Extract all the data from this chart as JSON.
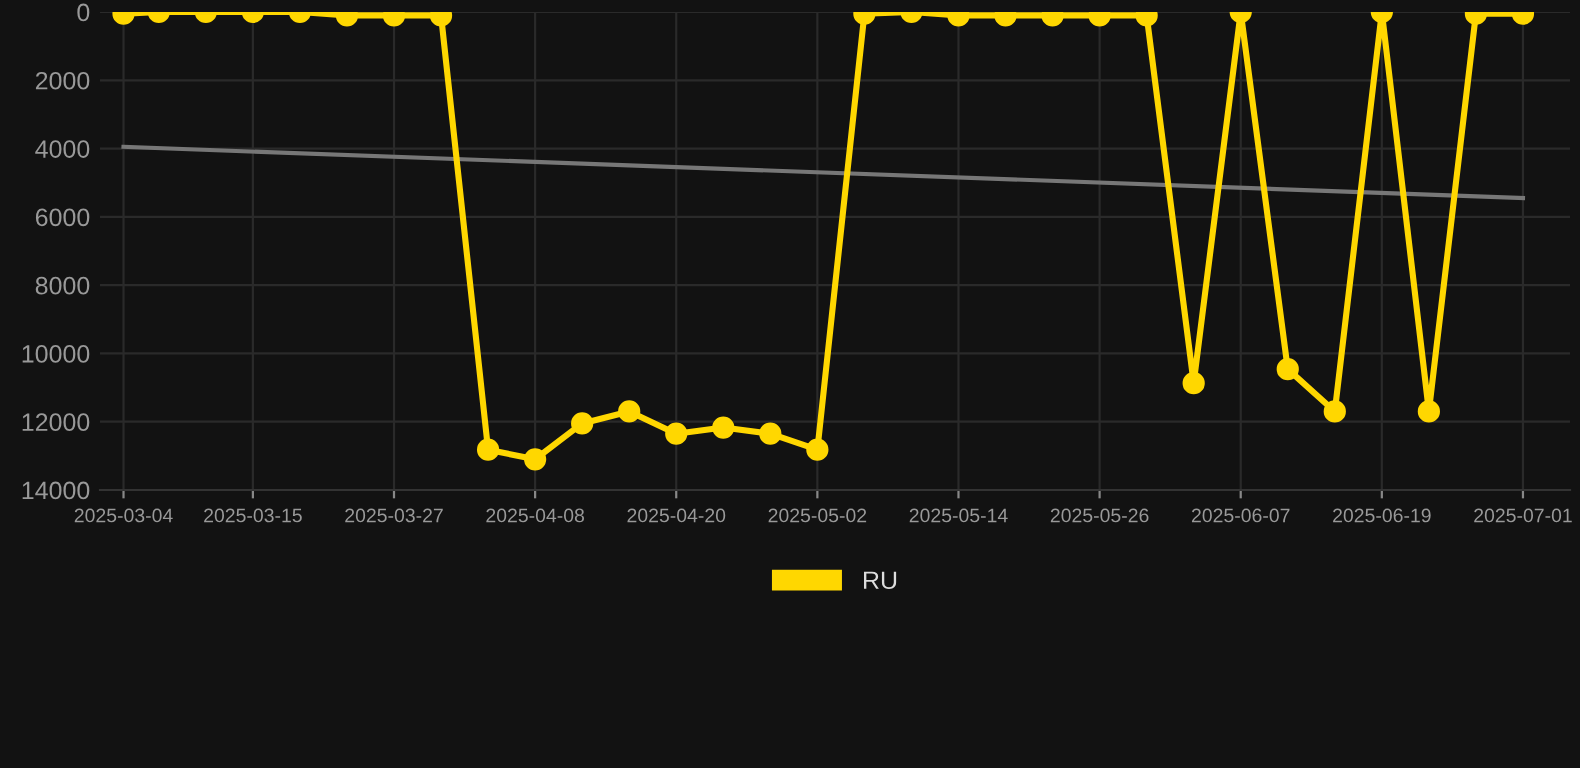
{
  "chart_data": {
    "type": "line",
    "x": [
      "2025-03-04",
      "2025-03-07",
      "2025-03-11",
      "2025-03-15",
      "2025-03-19",
      "2025-03-23",
      "2025-03-27",
      "2025-03-31",
      "2025-04-04",
      "2025-04-08",
      "2025-04-12",
      "2025-04-16",
      "2025-04-20",
      "2025-04-24",
      "2025-04-28",
      "2025-05-02",
      "2025-05-06",
      "2025-05-10",
      "2025-05-14",
      "2025-05-18",
      "2025-05-22",
      "2025-05-26",
      "2025-05-30",
      "2025-06-03",
      "2025-06-07",
      "2025-06-11",
      "2025-06-15",
      "2025-06-19",
      "2025-06-23",
      "2025-06-27",
      "2025-07-01"
    ],
    "series": [
      {
        "name": "RU",
        "color": "#ffd700",
        "marker": "circle",
        "values": [
          50,
          0,
          0,
          0,
          0,
          100,
          100,
          100,
          12820,
          13100,
          12050,
          11700,
          12350,
          12170,
          12350,
          12820,
          50,
          0,
          100,
          100,
          100,
          100,
          100,
          10870,
          0,
          10460,
          11700,
          0,
          11700,
          50,
          50
        ]
      },
      {
        "type": "line",
        "color": "#777777",
        "marker": "none",
        "x": [
          "2025-03-04",
          "2025-07-01"
        ],
        "values": [
          3950,
          5450
        ]
      }
    ],
    "xlim": [
      "2025-03-02",
      "2025-07-05"
    ],
    "xticks": [
      "2025-03-04",
      "2025-03-15",
      "2025-03-27",
      "2025-04-08",
      "2025-04-20",
      "2025-05-02",
      "2025-05-14",
      "2025-05-26",
      "2025-06-07",
      "2025-06-19",
      "2025-07-01"
    ],
    "ylim": [
      14000,
      0
    ],
    "yticks": [
      0,
      2000,
      4000,
      6000,
      8000,
      10000,
      12000,
      14000
    ],
    "grid": true,
    "legend": "bottom",
    "line_style": "solid"
  }
}
